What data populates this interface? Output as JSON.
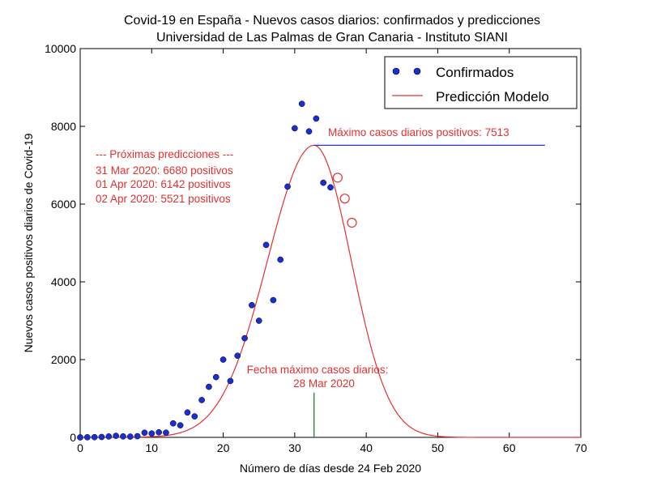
{
  "title": "Covid-19 en España - Nuevos casos diarios: confirmados y predicciones",
  "subtitle": "Universidad de Las Palmas de Gran Canaria - Instituto SIANI",
  "colors": {
    "confirmed": "#1a2ed6",
    "model": "#e53030",
    "max_line": "#2a34d8",
    "date_line": "#1a8a1a",
    "annotation_text": "#e53030"
  },
  "chart_data": {
    "type": "scatter",
    "title": "Covid-19 en España - Nuevos casos diarios: confirmados y predicciones",
    "subtitle": "Universidad de Las Palmas de Gran Canaria - Instituto SIANI",
    "xlabel": "Número de días desde 24 Feb 2020",
    "ylabel": "Nuevos casos positivos diarios de Covid-19",
    "xlim": [
      0,
      70
    ],
    "ylim": [
      0,
      10000
    ],
    "xticks": [
      0,
      10,
      20,
      30,
      40,
      50,
      60,
      70
    ],
    "yticks": [
      0,
      2000,
      4000,
      6000,
      8000,
      10000
    ],
    "legend": {
      "position": "top-right",
      "entries": [
        "Confirmados",
        "Predicción Modelo"
      ]
    },
    "grid": false,
    "series": [
      {
        "name": "Confirmados",
        "kind": "markers",
        "x": [
          0,
          1,
          2,
          3,
          4,
          5,
          6,
          7,
          8,
          9,
          10,
          11,
          12,
          13,
          14,
          15,
          16,
          17,
          18,
          19,
          20,
          21,
          22,
          23,
          24,
          25,
          26,
          27,
          28,
          29,
          30,
          31,
          32,
          33,
          34,
          35
        ],
        "y": [
          0,
          3,
          5,
          10,
          23,
          40,
          25,
          20,
          30,
          120,
          100,
          130,
          120,
          360,
          310,
          640,
          540,
          960,
          1300,
          1550,
          2000,
          1450,
          2100,
          2550,
          3400,
          3000,
          4950,
          3530,
          4570,
          6450,
          7950,
          8580,
          7870,
          8200,
          6550,
          6430
        ]
      },
      {
        "name": "Predicción Modelo",
        "kind": "curve",
        "model": {
          "peak_x": 32.7,
          "peak_y": 7513,
          "sigma_left": 6.5,
          "sigma_right": 5.2
        }
      }
    ],
    "predictions": [
      {
        "x": 36,
        "y": 6680
      },
      {
        "x": 37,
        "y": 6142
      },
      {
        "x": 38,
        "y": 5521
      }
    ],
    "annotations": {
      "max_text": "Máximo casos diarios positivos: 7513",
      "max_value": 7513,
      "max_line_x": [
        32.7,
        65
      ],
      "predictions_header": "--- Próximas predicciones ---",
      "predictions_lines": [
        "31 Mar 2020: 6680 positivos",
        "01 Apr 2020: 6142 positivos",
        "02 Apr 2020: 5521 positivos"
      ],
      "date_line_1": "Fecha máximo casos diarios:",
      "date_line_2": "28 Mar 2020",
      "date_marker_x": 32.7,
      "date_marker_y": 1150
    }
  }
}
